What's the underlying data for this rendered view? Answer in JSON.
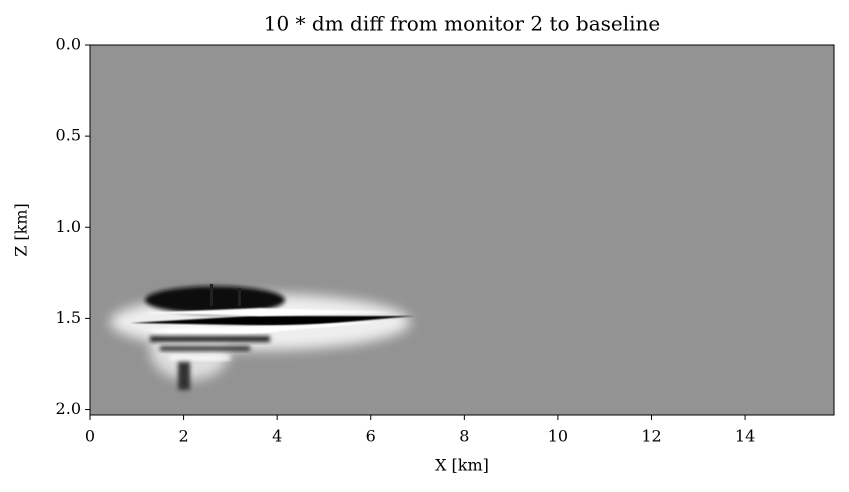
{
  "chart_data": {
    "type": "image",
    "title": "10 * dm diff from monitor 2 to baseline",
    "x_label": "X [km]",
    "y_label": "Z [km]",
    "xlim": [
      0,
      15.9
    ],
    "ylim": [
      0,
      2.03
    ],
    "y_inverted": true,
    "xticks": [
      0,
      2,
      4,
      6,
      8,
      10,
      12,
      14
    ],
    "yticks": [
      {
        "value": 0,
        "label": "0.0"
      },
      {
        "value": 0.5,
        "label": "0.5"
      },
      {
        "value": 1,
        "label": "1.0"
      },
      {
        "value": 1.5,
        "label": "1.5"
      },
      {
        "value": 2,
        "label": "2.0"
      }
    ],
    "background_color": "#939393",
    "colormap": "gray"
  }
}
